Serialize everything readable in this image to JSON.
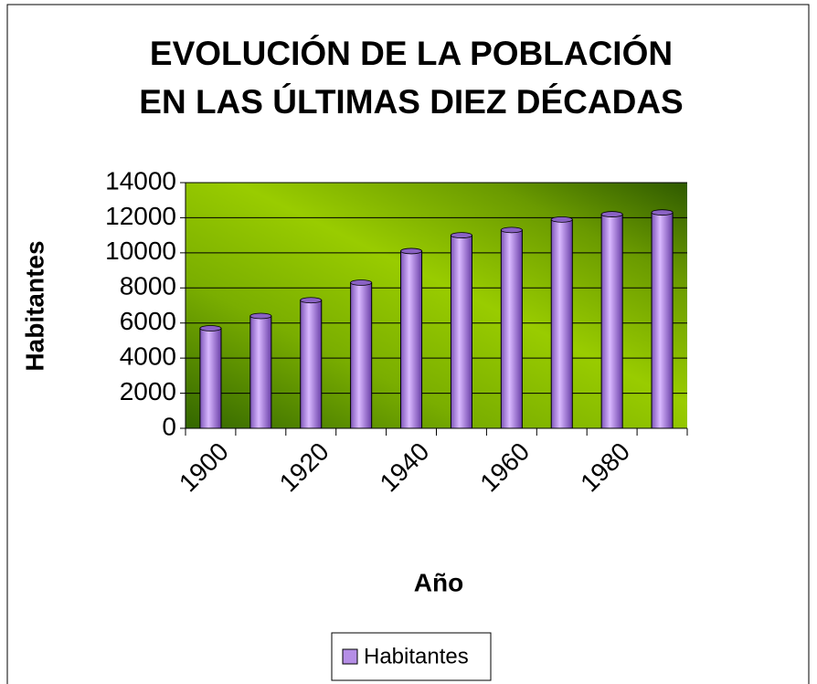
{
  "chart_data": {
    "type": "bar",
    "title": "EVOLUCIÓN DE LA POBLACIÓN EN LAS ÚLTIMAS DIEZ DÉCADAS",
    "x_label": "Año",
    "y_label": "Habitantes",
    "categories": [
      "1900",
      null,
      "1920",
      null,
      "1940",
      null,
      "1960",
      null,
      "1980",
      null
    ],
    "series": [
      {
        "name": "Habitantes",
        "color": "#b58ee6",
        "values": [
          5700,
          6400,
          7300,
          8300,
          10100,
          11000,
          11300,
          11900,
          12200,
          12300
        ]
      }
    ],
    "ylim": [
      0,
      14000
    ],
    "yticks": [
      0,
      2000,
      4000,
      6000,
      8000,
      10000,
      12000,
      14000
    ],
    "grid": true,
    "legend": "bottom"
  }
}
